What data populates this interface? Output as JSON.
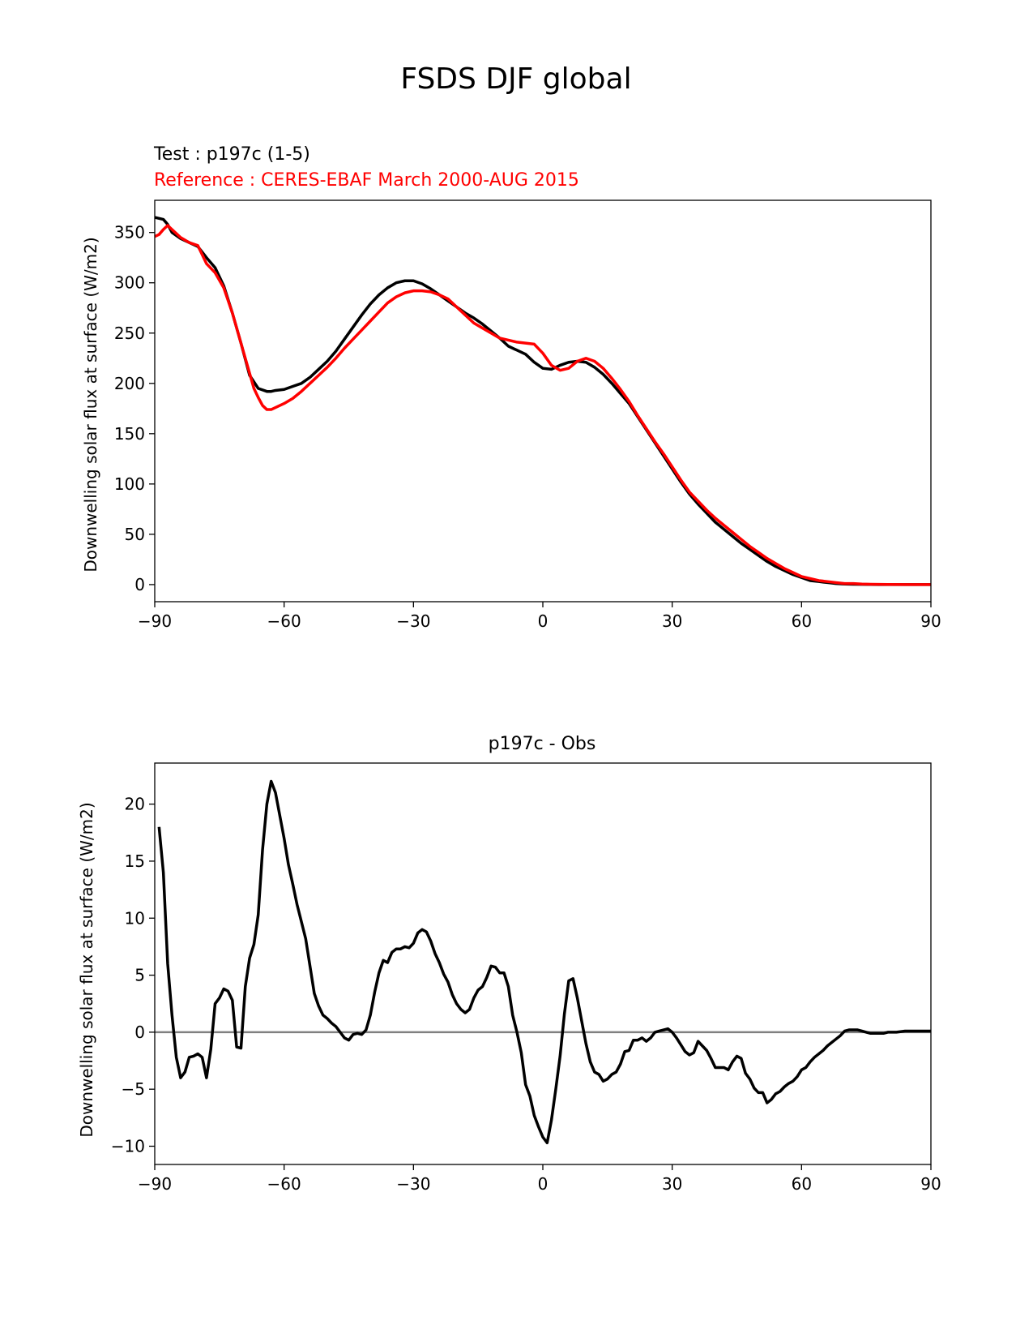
{
  "figure": {
    "title": "FSDS DJF global"
  },
  "chart_data": [
    {
      "type": "line",
      "test_label": "Test : p197c (1-5)",
      "reference_label": "Reference : CERES-EBAF March 2000-AUG 2015",
      "ylabel": "Downwelling solar flux at surface (W/m2)",
      "xlabel": "",
      "xlim": [
        -90,
        90
      ],
      "ylim": [
        -17,
        382
      ],
      "xticks": [
        -90,
        -60,
        -30,
        0,
        30,
        60,
        90
      ],
      "xtick_labels": [
        "−90",
        "−60",
        "−30",
        "0",
        "30",
        "60",
        "90"
      ],
      "yticks": [
        0,
        50,
        100,
        150,
        200,
        250,
        300,
        350
      ],
      "ytick_labels": [
        "0",
        "50",
        "100",
        "150",
        "200",
        "250",
        "300",
        "350"
      ],
      "colors": {
        "test": "#000000",
        "reference": "#ff0000"
      },
      "grid": false,
      "series": [
        {
          "role": "test",
          "x": [
            -90,
            -88,
            -87,
            -86,
            -84,
            -82,
            -80,
            -78,
            -76,
            -74,
            -72,
            -70,
            -68,
            -66,
            -64,
            -63,
            -62,
            -60,
            -58,
            -56,
            -54,
            -52,
            -50,
            -48,
            -46,
            -44,
            -42,
            -40,
            -38,
            -36,
            -34,
            -32,
            -30,
            -28,
            -26,
            -24,
            -22,
            -20,
            -18,
            -16,
            -14,
            -12,
            -10,
            -8,
            -6,
            -4,
            -2,
            0,
            2,
            4,
            6,
            8,
            10,
            12,
            14,
            16,
            18,
            20,
            22,
            24,
            26,
            28,
            30,
            32,
            34,
            36,
            38,
            40,
            42,
            44,
            46,
            48,
            50,
            52,
            54,
            56,
            58,
            60,
            62,
            64,
            66,
            68,
            70,
            72,
            74,
            76,
            78,
            80,
            85,
            90
          ],
          "y": [
            365,
            363,
            358,
            350,
            344,
            340,
            336,
            325,
            315,
            297,
            270,
            240,
            208,
            195,
            192,
            192,
            193,
            194,
            197,
            200,
            206,
            214,
            222,
            232,
            244,
            256,
            268,
            279,
            288,
            295,
            300,
            302,
            302,
            299,
            294,
            288,
            282,
            276,
            270,
            265,
            259,
            252,
            245,
            237,
            233,
            229,
            221,
            215,
            214,
            218,
            221,
            222,
            221,
            216,
            209,
            200,
            190,
            180,
            167,
            154,
            141,
            128,
            115,
            102,
            90,
            80,
            71,
            62,
            55,
            48,
            41,
            35,
            29,
            23,
            18,
            14,
            10,
            7,
            4,
            3,
            2,
            1,
            0.5,
            0.3,
            0.2,
            0.1,
            0,
            0,
            0,
            0
          ]
        },
        {
          "role": "reference",
          "x": [
            -90,
            -89,
            -88,
            -87,
            -86,
            -84,
            -82,
            -80,
            -78,
            -76,
            -74,
            -72,
            -70,
            -68,
            -67,
            -66,
            -65,
            -64,
            -63,
            -62,
            -60,
            -58,
            -56,
            -54,
            -52,
            -50,
            -48,
            -46,
            -44,
            -42,
            -40,
            -38,
            -36,
            -34,
            -32,
            -30,
            -28,
            -26,
            -24,
            -22,
            -20,
            -18,
            -16,
            -14,
            -12,
            -10,
            -8,
            -6,
            -4,
            -2,
            0,
            2,
            4,
            6,
            8,
            10,
            12,
            14,
            16,
            18,
            20,
            22,
            24,
            26,
            28,
            30,
            32,
            34,
            36,
            38,
            40,
            42,
            44,
            46,
            48,
            50,
            52,
            54,
            56,
            58,
            60,
            62,
            64,
            66,
            68,
            70,
            72,
            74,
            76,
            78,
            80,
            85,
            90
          ],
          "y": [
            346,
            348,
            353,
            357,
            353,
            345,
            340,
            337,
            319,
            310,
            295,
            270,
            240,
            210,
            195,
            186,
            178,
            174,
            174,
            176,
            180,
            185,
            192,
            200,
            208,
            216,
            225,
            235,
            244,
            253,
            262,
            271,
            280,
            286,
            290,
            292,
            292,
            291,
            288,
            284,
            276,
            268,
            260,
            255,
            250,
            245,
            243,
            241,
            240,
            239,
            230,
            218,
            213,
            215,
            222,
            225,
            222,
            215,
            205,
            194,
            182,
            168,
            155,
            142,
            130,
            117,
            104,
            92,
            83,
            74,
            66,
            59,
            52,
            45,
            38,
            32,
            26,
            21,
            16,
            12,
            8,
            6,
            4,
            3,
            2,
            1,
            1,
            0.5,
            0.3,
            0.2,
            0.1,
            0,
            0
          ]
        }
      ]
    },
    {
      "type": "line",
      "title": "p197c - Obs",
      "ylabel": "Downwelling solar flux at surface (W/m2)",
      "xlabel": "",
      "xlim": [
        -90,
        90
      ],
      "ylim": [
        -11.6,
        23.6
      ],
      "xticks": [
        -90,
        -60,
        -30,
        0,
        30,
        60,
        90
      ],
      "xtick_labels": [
        "−90",
        "−60",
        "−30",
        "0",
        "30",
        "60",
        "90"
      ],
      "yticks": [
        -10,
        -5,
        0,
        5,
        10,
        15,
        20
      ],
      "ytick_labels": [
        "−10",
        "−5",
        "0",
        "5",
        "10",
        "15",
        "20"
      ],
      "zero_line": {
        "y": 0,
        "color": "#808080"
      },
      "colors": {
        "difference": "#000000"
      },
      "grid": false,
      "series": [
        {
          "role": "difference",
          "x": [
            -89,
            -88,
            -87,
            -86,
            -85,
            -84,
            -83,
            -82,
            -81,
            -80,
            -79,
            -78,
            -77,
            -76,
            -75,
            -74,
            -73,
            -72,
            -71,
            -70,
            -69,
            -68,
            -67,
            -66,
            -65,
            -64,
            -63,
            -62,
            -61,
            -60,
            -59,
            -58,
            -57,
            -56,
            -55,
            -54,
            -53,
            -52,
            -51,
            -50,
            -49,
            -48,
            -47,
            -46,
            -45,
            -44,
            -43,
            -42,
            -41,
            -40,
            -39,
            -38,
            -37,
            -36,
            -35,
            -34,
            -33,
            -32,
            -31,
            -30,
            -29,
            -28,
            -27,
            -26,
            -25,
            -24,
            -23,
            -22,
            -21,
            -20,
            -19,
            -18,
            -17,
            -16,
            -15,
            -14,
            -13,
            -12,
            -11,
            -10,
            -9,
            -8,
            -7,
            -6,
            -5,
            -4,
            -3,
            -2,
            -1,
            0,
            1,
            2,
            3,
            4,
            5,
            6,
            7,
            8,
            9,
            10,
            11,
            12,
            13,
            14,
            15,
            16,
            17,
            18,
            19,
            20,
            21,
            22,
            23,
            24,
            25,
            26,
            27,
            28,
            29,
            30,
            31,
            32,
            33,
            34,
            35,
            36,
            37,
            38,
            39,
            40,
            41,
            42,
            43,
            44,
            45,
            46,
            47,
            48,
            49,
            50,
            51,
            52,
            53,
            54,
            55,
            56,
            57,
            58,
            59,
            60,
            61,
            62,
            63,
            64,
            65,
            66,
            67,
            68,
            69,
            70,
            71,
            72,
            73,
            74,
            75,
            76,
            77,
            78,
            79,
            80,
            82,
            84,
            86,
            88,
            90
          ],
          "y": [
            18,
            14,
            6,
            1.5,
            -2.2,
            -4,
            -3.5,
            -2.2,
            -2.1,
            -1.9,
            -2.2,
            -4,
            -1.5,
            2.5,
            3,
            3.8,
            3.6,
            2.8,
            -1.3,
            -1.4,
            4,
            6.5,
            7.7,
            10.3,
            16,
            20,
            22,
            21,
            19,
            17,
            14.7,
            13,
            11.2,
            9.7,
            8.2,
            5.8,
            3.4,
            2.3,
            1.5,
            1.2,
            0.8,
            0.5,
            0,
            -0.5,
            -0.7,
            -0.2,
            -0.1,
            -0.2,
            0.2,
            1.5,
            3.5,
            5.2,
            6.3,
            6.1,
            7,
            7.3,
            7.3,
            7.5,
            7.4,
            7.8,
            8.7,
            9,
            8.8,
            8,
            6.9,
            6.1,
            5.1,
            4.4,
            3.3,
            2.5,
            2,
            1.7,
            2,
            3,
            3.7,
            4,
            4.8,
            5.8,
            5.7,
            5.2,
            5.2,
            4,
            1.5,
            0,
            -1.8,
            -4.6,
            -5.6,
            -7.3,
            -8.3,
            -9.2,
            -9.7,
            -7.7,
            -5,
            -2.1,
            1.6,
            4.5,
            4.7,
            3,
            1,
            -1,
            -2.6,
            -3.5,
            -3.7,
            -4.3,
            -4.1,
            -3.7,
            -3.5,
            -2.8,
            -1.7,
            -1.6,
            -0.7,
            -0.7,
            -0.5,
            -0.8,
            -0.5,
            0,
            0.1,
            0.2,
            0.3,
            0,
            -0.5,
            -1.1,
            -1.7,
            -2,
            -1.8,
            -0.8,
            -1.2,
            -1.6,
            -2.3,
            -3.1,
            -3.1,
            -3.1,
            -3.3,
            -2.6,
            -2.1,
            -2.3,
            -3.6,
            -4.1,
            -4.9,
            -5.3,
            -5.3,
            -6.2,
            -5.9,
            -5.4,
            -5.2,
            -4.8,
            -4.5,
            -4.3,
            -3.9,
            -3.3,
            -3.1,
            -2.6,
            -2.2,
            -1.9,
            -1.6,
            -1.2,
            -0.9,
            -0.6,
            -0.3,
            0.1,
            0.2,
            0.2,
            0.2,
            0.1,
            0,
            -0.1,
            -0.1,
            -0.1,
            -0.1,
            0,
            0,
            0.1,
            0.1,
            0.1,
            0.1
          ]
        }
      ]
    }
  ]
}
